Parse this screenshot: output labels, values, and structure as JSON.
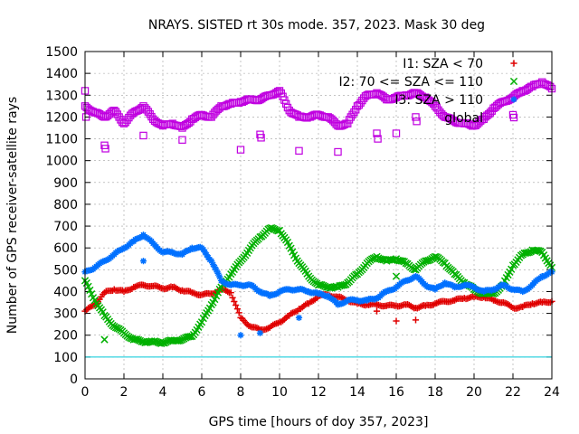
{
  "chart_data": {
    "type": "scatter",
    "title": "NRAYS. SISTED rt 30s mode. 357, 2023. Mask 30 deg",
    "xlabel": "GPS time [hours of doy 357, 2023]",
    "ylabel": "Number of GPS receiver-satellite rays",
    "xlim": [
      0,
      24
    ],
    "ylim": [
      0,
      1500
    ],
    "xticks": [
      "0",
      "2",
      "4",
      "6",
      "8",
      "10",
      "12",
      "14",
      "16",
      "18",
      "20",
      "22",
      "24"
    ],
    "yticks": [
      "0",
      "100",
      "200",
      "300",
      "400",
      "500",
      "600",
      "700",
      "800",
      "900",
      "1000",
      "1100",
      "1200",
      "1300",
      "1400",
      "1500"
    ],
    "grid": true,
    "legend_position": "top-right",
    "reference_line": {
      "y": 100,
      "color": "#00c8d8"
    },
    "series": [
      {
        "name": "I1: SZA < 70",
        "color": "#e00000",
        "marker": "+",
        "x": [
          0,
          0.5,
          1,
          1.5,
          2,
          2.5,
          3,
          3.5,
          4,
          4.5,
          5,
          5.5,
          6,
          6.5,
          7,
          7.5,
          8,
          8.5,
          9,
          9.5,
          10,
          10.5,
          11,
          11.5,
          12,
          12.5,
          13,
          13.5,
          14,
          14.5,
          15,
          15.5,
          16,
          16.5,
          17,
          17.5,
          18,
          18.5,
          19,
          19.5,
          20,
          20.5,
          21,
          21.5,
          22,
          22.5,
          23,
          23.5,
          24
        ],
        "y": [
          310,
          340,
          395,
          410,
          400,
          420,
          430,
          425,
          415,
          420,
          405,
          395,
          385,
          390,
          410,
          395,
          280,
          240,
          225,
          235,
          260,
          290,
          320,
          345,
          380,
          385,
          375,
          360,
          345,
          340,
          340,
          335,
          335,
          340,
          325,
          335,
          345,
          355,
          360,
          370,
          375,
          375,
          360,
          350,
          325,
          330,
          345,
          350,
          355
        ]
      },
      {
        "name": "I2: 70 <= SZA <= 110",
        "color": "#00b000",
        "marker": "x",
        "x": [
          0,
          0.5,
          1,
          1.5,
          2,
          2.5,
          3,
          3.5,
          4,
          4.5,
          5,
          5.5,
          6,
          6.5,
          7,
          7.5,
          8,
          8.5,
          9,
          9.5,
          10,
          10.5,
          11,
          11.5,
          12,
          12.5,
          13,
          13.5,
          14,
          14.5,
          15,
          15.5,
          16,
          16.5,
          17,
          17.5,
          18,
          18.5,
          19,
          19.5,
          20,
          20.5,
          21,
          21.5,
          22,
          22.5,
          23,
          23.5,
          24
        ],
        "y": [
          450,
          360,
          290,
          240,
          210,
          180,
          170,
          170,
          165,
          175,
          180,
          195,
          260,
          340,
          420,
          480,
          540,
          600,
          650,
          690,
          680,
          610,
          530,
          470,
          430,
          420,
          420,
          440,
          480,
          530,
          560,
          540,
          550,
          530,
          500,
          540,
          560,
          530,
          480,
          440,
          410,
          390,
          390,
          430,
          520,
          570,
          590,
          580,
          510
        ]
      },
      {
        "name": "I3: SZA > 110",
        "color": "#0070ff",
        "marker": "*",
        "x": [
          0,
          0.5,
          1,
          1.5,
          2,
          2.5,
          3,
          3.5,
          4,
          4.5,
          5,
          5.5,
          6,
          6.5,
          7,
          7.5,
          8,
          8.5,
          9,
          9.5,
          10,
          10.5,
          11,
          11.5,
          12,
          12.5,
          13,
          13.5,
          14,
          14.5,
          15,
          15.5,
          16,
          16.5,
          17,
          17.5,
          18,
          18.5,
          19,
          19.5,
          20,
          20.5,
          21,
          21.5,
          22,
          22.5,
          23,
          23.5,
          24
        ],
        "y": [
          490,
          510,
          540,
          570,
          600,
          630,
          660,
          620,
          580,
          580,
          570,
          600,
          600,
          540,
          450,
          430,
          430,
          430,
          400,
          380,
          400,
          410,
          410,
          400,
          390,
          380,
          340,
          360,
          360,
          360,
          370,
          400,
          420,
          450,
          470,
          430,
          410,
          440,
          420,
          430,
          420,
          400,
          410,
          430,
          410,
          400,
          430,
          470,
          490
        ]
      },
      {
        "name": "global",
        "color": "#c000e0",
        "marker": "square",
        "x": [
          0,
          0.5,
          1,
          1.5,
          2,
          2.5,
          3,
          3.5,
          4,
          4.5,
          5,
          5.5,
          6,
          6.5,
          7,
          7.5,
          8,
          8.5,
          9,
          9.5,
          10,
          10.5,
          11,
          11.5,
          12,
          12.5,
          13,
          13.5,
          14,
          14.5,
          15,
          15.5,
          16,
          16.5,
          17,
          17.5,
          18,
          18.5,
          19,
          19.5,
          20,
          20.5,
          21,
          21.5,
          22,
          22.5,
          23,
          23.5,
          24
        ],
        "y": [
          1250,
          1220,
          1200,
          1230,
          1170,
          1220,
          1250,
          1190,
          1160,
          1170,
          1150,
          1190,
          1210,
          1200,
          1250,
          1260,
          1270,
          1280,
          1280,
          1300,
          1320,
          1230,
          1200,
          1200,
          1210,
          1200,
          1160,
          1170,
          1250,
          1300,
          1310,
          1280,
          1290,
          1300,
          1310,
          1290,
          1250,
          1200,
          1180,
          1170,
          1160,
          1190,
          1240,
          1270,
          1290,
          1320,
          1340,
          1360,
          1330
        ]
      }
    ],
    "outliers": [
      {
        "series": 3,
        "x": 0,
        "y": 1320
      },
      {
        "series": 3,
        "x": 0.05,
        "y": 1200
      },
      {
        "series": 3,
        "x": 1,
        "y": 1070
      },
      {
        "series": 3,
        "x": 1.05,
        "y": 1055
      },
      {
        "series": 3,
        "x": 3,
        "y": 1115
      },
      {
        "series": 3,
        "x": 5,
        "y": 1095
      },
      {
        "series": 3,
        "x": 8,
        "y": 1050
      },
      {
        "series": 3,
        "x": 9,
        "y": 1120
      },
      {
        "series": 3,
        "x": 9.05,
        "y": 1105
      },
      {
        "series": 3,
        "x": 11,
        "y": 1045
      },
      {
        "series": 3,
        "x": 13,
        "y": 1040
      },
      {
        "series": 3,
        "x": 15,
        "y": 1125
      },
      {
        "series": 3,
        "x": 15.05,
        "y": 1100
      },
      {
        "series": 3,
        "x": 16,
        "y": 1125
      },
      {
        "series": 3,
        "x": 17,
        "y": 1200
      },
      {
        "series": 3,
        "x": 17.05,
        "y": 1180
      },
      {
        "series": 3,
        "x": 22,
        "y": 1210
      },
      {
        "series": 1,
        "x": 1,
        "y": 180
      },
      {
        "series": 1,
        "x": 16,
        "y": 470
      },
      {
        "series": 2,
        "x": 3,
        "y": 540
      },
      {
        "series": 2,
        "x": 8,
        "y": 200
      },
      {
        "series": 2,
        "x": 9,
        "y": 210
      },
      {
        "series": 2,
        "x": 11,
        "y": 280
      },
      {
        "series": 0,
        "x": 15,
        "y": 310
      },
      {
        "series": 0,
        "x": 16,
        "y": 265
      },
      {
        "series": 0,
        "x": 17,
        "y": 270
      }
    ]
  }
}
